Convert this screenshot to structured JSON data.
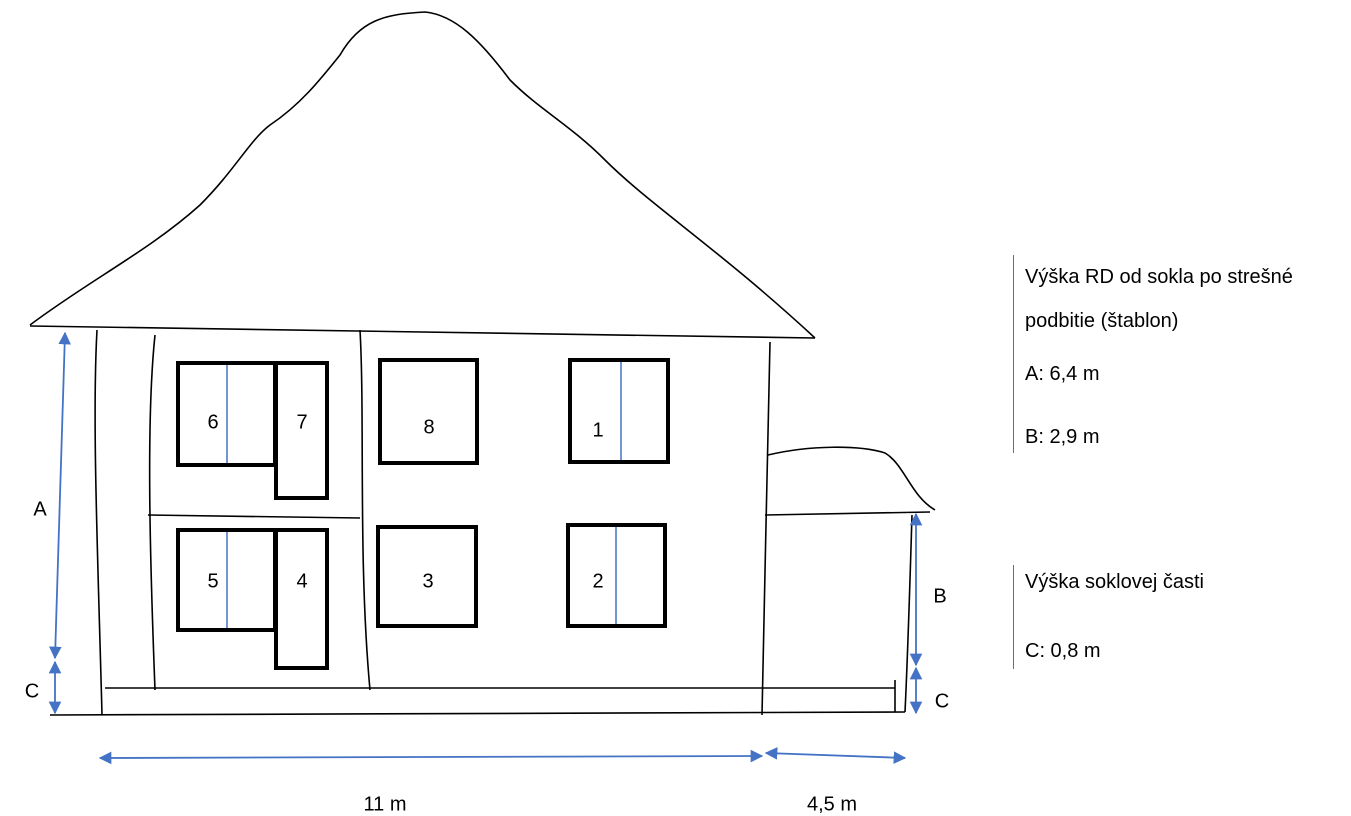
{
  "window_labels": [
    "6",
    "7",
    "8",
    "1",
    "5",
    "4",
    "3",
    "2"
  ],
  "dimension_labels": [
    "A",
    "C",
    "B",
    "C",
    "11 m",
    "4,5 m"
  ],
  "legend": [
    {
      "title": "Výška RD od sokla po strešné podbitie (štablon)",
      "items": [
        "A: 6,4 m",
        "B: 2,9 m"
      ]
    },
    {
      "title": "Výška soklovej časti",
      "items": [
        "C: 0,8 m"
      ]
    }
  ]
}
